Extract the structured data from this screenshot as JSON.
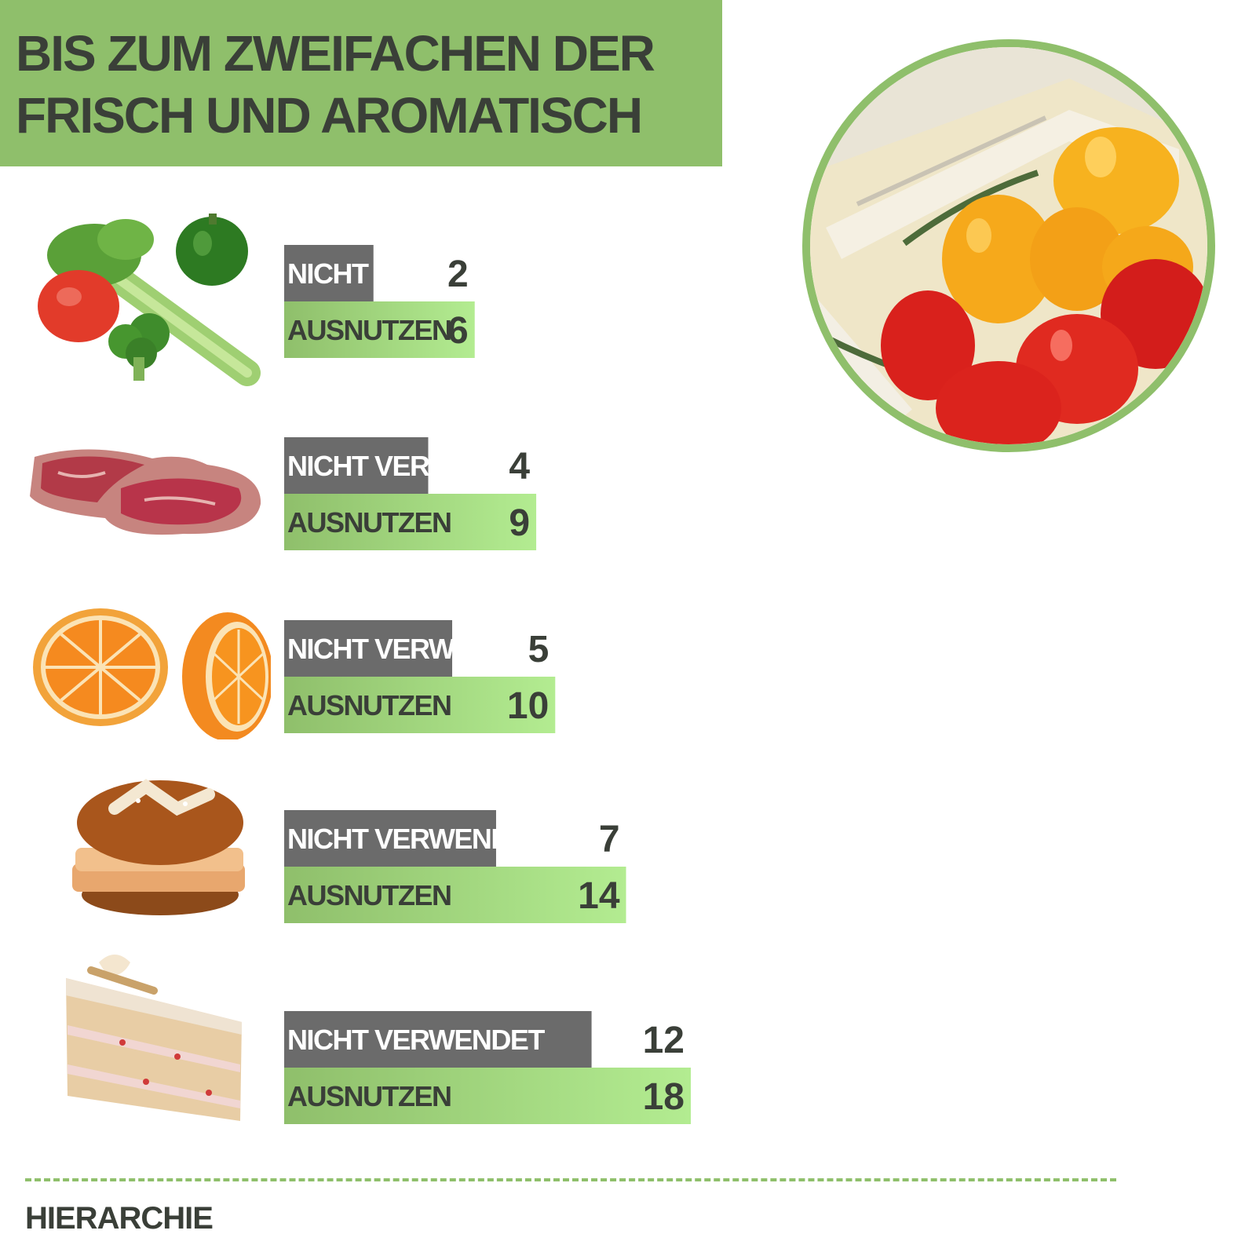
{
  "header": {
    "title_line1": "BIS ZUM ZWEIFACHEN DER",
    "title_line2": "FRISCH UND AROMATISCH"
  },
  "footer": {
    "text": "HIERARCHIE"
  },
  "colors": {
    "accent_green": "#8fbf6b",
    "bar_gray": "#6b6b6b",
    "bar_green_start": "#8fbf6b",
    "bar_green_end": "#b3ec91",
    "text_dark": "#3a3f38"
  },
  "icons": [
    "vegetables-icon",
    "steak-icon",
    "orange-icon",
    "bread-icon",
    "cake-icon",
    "tomatoes-in-container-photo"
  ],
  "chart_data": {
    "type": "bar",
    "orientation": "horizontal",
    "categories": [
      "Gemüse",
      "Fleisch",
      "Obst",
      "Brot",
      "Kuchen"
    ],
    "series": [
      {
        "name": "NICHT VERWENDET",
        "values": [
          2,
          4,
          5,
          7,
          12
        ]
      },
      {
        "name": "AUSNUTZEN",
        "values": [
          6,
          9,
          10,
          14,
          18
        ]
      }
    ],
    "grid": false,
    "legend": "none"
  }
}
